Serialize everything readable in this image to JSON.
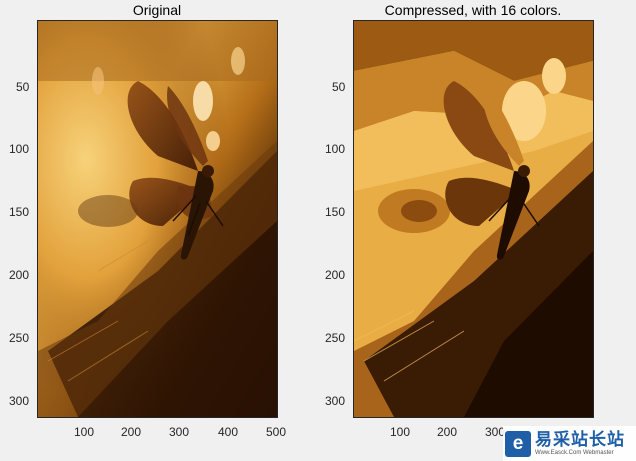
{
  "figure": {
    "panels": [
      {
        "title": "Original",
        "x_ticks": [
          "100",
          "200",
          "300",
          "400",
          "500"
        ],
        "y_ticks": [
          "50",
          "100",
          "150",
          "200",
          "250",
          "300"
        ]
      },
      {
        "title": "Compressed, with 16 colors.",
        "x_ticks": [
          "100",
          "200",
          "300"
        ],
        "y_ticks": [
          "50",
          "100",
          "150",
          "200",
          "250",
          "300"
        ]
      }
    ]
  },
  "watermark": {
    "logo_glyph": "e",
    "name": "易采站长站",
    "url": "Www.Easck.Com Webmaster"
  }
}
